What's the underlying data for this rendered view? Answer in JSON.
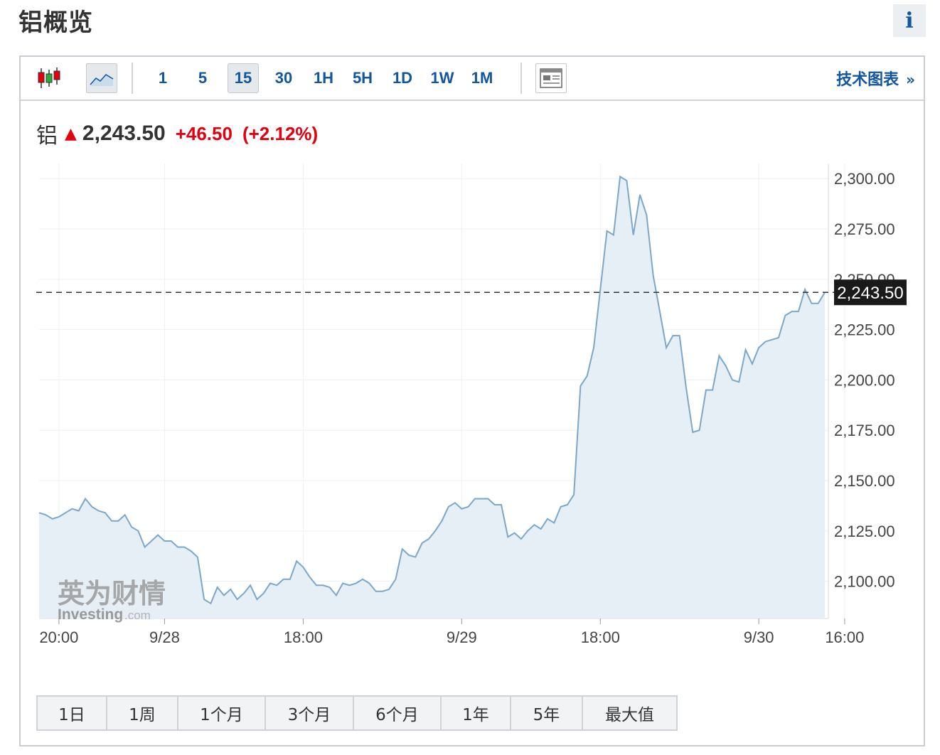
{
  "page_title": "铝概览",
  "info_button": "i",
  "toolbar": {
    "chart_type_icons": [
      "candlestick-icon",
      "line-chart-icon"
    ],
    "periods": [
      "1",
      "5",
      "15",
      "30",
      "1H",
      "5H",
      "1D",
      "1W",
      "1M"
    ],
    "active_period": "15",
    "layout_icon": "table-layout-icon",
    "tech_chart_link": "技术图表",
    "tech_chart_chevron": "»"
  },
  "quote": {
    "name": "铝",
    "direction": "up",
    "price": "2,243.50",
    "change": "+46.50",
    "change_pct": "(+2.12%)"
  },
  "watermark": {
    "cn": "英为财情",
    "en": "Investing",
    "suffix": ".com"
  },
  "range_buttons": [
    "1日",
    "1周",
    "1个月",
    "3个月",
    "6个月",
    "1年",
    "5年",
    "最大值"
  ],
  "colors": {
    "line": "#7ba7cb",
    "fill": "#e6eef6",
    "up": "#e3000f",
    "link": "#1256a0",
    "price_label_bg": "#1a1a1a"
  },
  "chart_data": {
    "type": "area",
    "ylim": [
      2081.5,
      2307.5
    ],
    "yticks": [
      "2,300.00",
      "2,275.00",
      "2,250.00",
      "2,225.00",
      "2,200.00",
      "2,175.00",
      "2,150.00",
      "2,125.00",
      "2,100.00"
    ],
    "ytick_values": [
      2300,
      2275,
      2250,
      2225,
      2200,
      2175,
      2150,
      2125,
      2100
    ],
    "x_ticks": [
      "20:00",
      "9/28",
      "18:00",
      "9/29",
      "18:00",
      "9/30",
      "16:00"
    ],
    "x_tick_index": [
      3,
      19,
      40,
      64,
      85,
      109,
      122
    ],
    "current_value": 2243.5,
    "current_label": "2,243.50",
    "grid": true,
    "values": [
      2134,
      2133,
      2131,
      2132,
      2134,
      2136,
      2135,
      2141,
      2137,
      2135,
      2134,
      2130,
      2130,
      2133,
      2127,
      2125,
      2117,
      2120,
      2123,
      2120,
      2120,
      2117,
      2117,
      2115,
      2112,
      2091,
      2089,
      2097,
      2093,
      2096,
      2091,
      2094,
      2098,
      2091,
      2094,
      2099,
      2098,
      2101,
      2101,
      2110,
      2107,
      2102,
      2098,
      2098,
      2097,
      2093,
      2099,
      2098,
      2099,
      2101,
      2099,
      2095,
      2095,
      2096,
      2101,
      2116,
      2113,
      2112,
      2119,
      2121,
      2125,
      2130,
      2137,
      2139,
      2136,
      2137,
      2141,
      2141,
      2141,
      2138,
      2138,
      2122,
      2124,
      2121,
      2125,
      2128,
      2126,
      2131,
      2129,
      2137,
      2138,
      2143,
      2197,
      2202,
      2216,
      2245,
      2274,
      2272,
      2301,
      2299,
      2272,
      2292,
      2282,
      2252,
      2234,
      2216,
      2222,
      2222,
      2196,
      2174,
      2175,
      2195,
      2195,
      2212,
      2207,
      2200,
      2199,
      2215,
      2208,
      2216,
      2219,
      2220,
      2221,
      2232,
      2234,
      2234,
      2245,
      2238,
      2238,
      2243.5
    ]
  }
}
